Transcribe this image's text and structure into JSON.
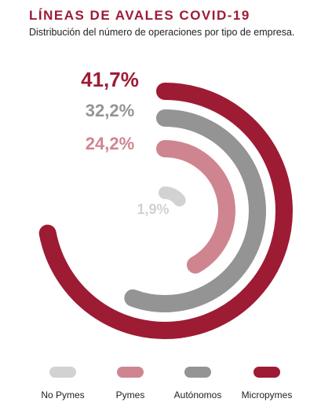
{
  "header": {
    "title": "LÍNEAS DE AVALES COVID-19",
    "subtitle": "Distribución del número de operaciones por tipo de empresa."
  },
  "colors": {
    "title": "#9e1b34",
    "micropymes": "#9e1b34",
    "autonomos": "#949494",
    "pymes": "#cf8590",
    "nopymes": "#d2d2d2"
  },
  "chart_data": {
    "type": "radial-bar",
    "title": "LÍNEAS DE AVALES COVID-19",
    "subtitle": "Distribución del número de operaciones por tipo de empresa.",
    "unit": "%",
    "categories": [
      "Micropymes",
      "Autónomos",
      "Pymes",
      "No Pymes"
    ],
    "values": [
      41.7,
      32.2,
      24.2,
      1.9
    ],
    "value_labels": [
      "41,7%",
      "32,2%",
      "24,2%",
      "1,9%"
    ],
    "legend": {
      "placement": "bottom",
      "order": [
        "No Pymes",
        "Pymes",
        "Autónomos",
        "Micropymes"
      ]
    }
  }
}
